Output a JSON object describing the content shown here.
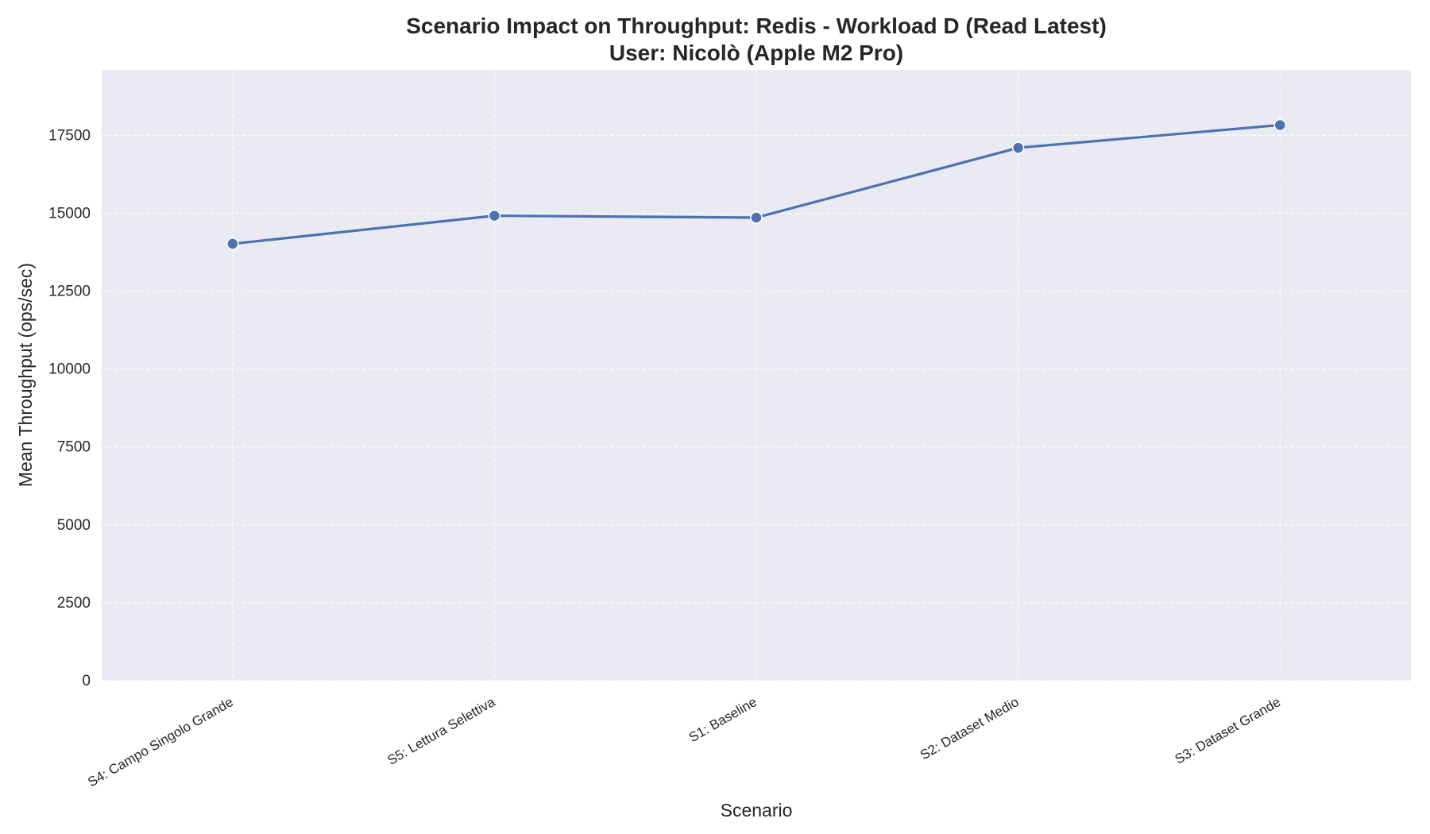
{
  "chart_data": {
    "type": "line",
    "title": "Scenario Impact on Throughput: Redis - Workload D (Read Latest)",
    "subtitle": "User: Nicolò (Apple M2 Pro)",
    "xlabel": "Scenario",
    "ylabel": "Mean Throughput (ops/sec)",
    "categories": [
      "S4: Campo Singolo Grande",
      "S5: Lettura Selettiva",
      "S1: Baseline",
      "S2: Dataset Medio",
      "S3: Dataset Grande"
    ],
    "series": [
      {
        "values": [
          14020,
          14920,
          14860,
          17100,
          17830
        ],
        "color": "#4c72b0"
      }
    ],
    "ylim": [
      0,
      19600
    ],
    "yticks": [
      0,
      2500,
      5000,
      7500,
      10000,
      12500,
      15000,
      17500
    ],
    "grid": true,
    "background": "#eaeaf2",
    "legend": "none"
  }
}
